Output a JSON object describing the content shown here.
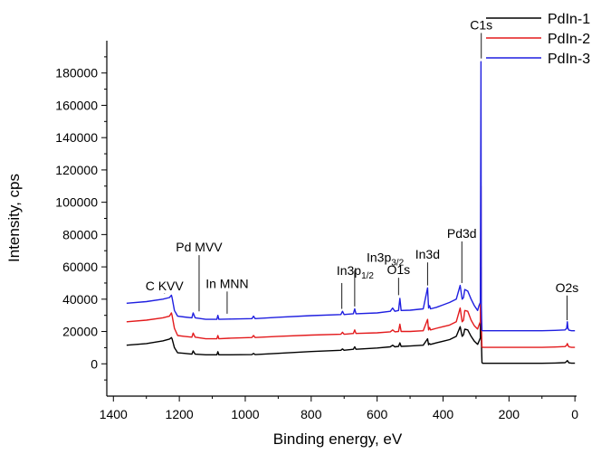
{
  "chart_data": {
    "type": "line",
    "title": "",
    "xlabel": "Binding energy, eV",
    "ylabel": "Intensity, cps",
    "xlim": [
      1420,
      -5
    ],
    "ylim": [
      -20000,
      200000
    ],
    "x_ticks": [
      1400,
      1200,
      1000,
      800,
      600,
      400,
      200,
      0
    ],
    "y_ticks": [
      0,
      20000,
      40000,
      60000,
      80000,
      100000,
      120000,
      140000,
      160000,
      180000
    ],
    "legend_position": "top-right",
    "series": [
      {
        "name": "PdIn-1",
        "color": "#000000",
        "x": [
          1360,
          1300,
          1250,
          1230,
          1224,
          1222,
          1215,
          1205,
          1185,
          1162,
          1158,
          1152,
          1120,
          1086,
          1083,
          1080,
          1050,
          980,
          975,
          970,
          900,
          800,
          710,
          705,
          700,
          672,
          668,
          664,
          600,
          560,
          553,
          546,
          535,
          531,
          527,
          500,
          460,
          447,
          444,
          441,
          438,
          420,
          400,
          380,
          360,
          348,
          342,
          338,
          334,
          325,
          315,
          305,
          295,
          291,
          287,
          285,
          284,
          283,
          282,
          280,
          270,
          250,
          200,
          150,
          100,
          60,
          30,
          25,
          23,
          21,
          18,
          10,
          0
        ],
        "y": [
          11500,
          12500,
          14200,
          15300,
          16200,
          15500,
          10000,
          6800,
          6500,
          6000,
          8000,
          6000,
          5600,
          5600,
          7500,
          5600,
          5600,
          5700,
          6400,
          5700,
          6500,
          7600,
          8400,
          9200,
          8400,
          9000,
          10500,
          9000,
          9800,
          10500,
          11500,
          10500,
          10800,
          13000,
          10800,
          11000,
          11500,
          15500,
          11800,
          12500,
          12000,
          13000,
          14000,
          15000,
          17000,
          23000,
          17000,
          18000,
          21500,
          21000,
          17000,
          14000,
          12000,
          14000,
          16000,
          60000,
          19000,
          9000,
          800,
          300,
          300,
          300,
          300,
          300,
          300,
          500,
          700,
          1500,
          2000,
          1500,
          600,
          400,
          400
        ]
      },
      {
        "name": "PdIn-2",
        "color": "#e31a1c",
        "x": [
          1360,
          1300,
          1250,
          1230,
          1224,
          1222,
          1215,
          1205,
          1185,
          1162,
          1158,
          1152,
          1120,
          1086,
          1083,
          1080,
          1050,
          980,
          975,
          970,
          900,
          800,
          710,
          705,
          700,
          672,
          668,
          664,
          600,
          560,
          553,
          546,
          535,
          531,
          527,
          500,
          460,
          447,
          444,
          441,
          438,
          420,
          400,
          380,
          360,
          348,
          342,
          338,
          334,
          325,
          315,
          305,
          295,
          291,
          287,
          285,
          284,
          283,
          282,
          280,
          270,
          250,
          200,
          150,
          100,
          60,
          30,
          25,
          23,
          21,
          18,
          10,
          0
        ],
        "y": [
          26000,
          27000,
          28500,
          29500,
          31500,
          30000,
          22000,
          17500,
          17000,
          16500,
          19000,
          16500,
          15500,
          15500,
          17500,
          15500,
          15800,
          16300,
          17500,
          16300,
          17000,
          17800,
          18300,
          19500,
          18300,
          18800,
          21000,
          18800,
          19200,
          19800,
          21000,
          19800,
          20000,
          24500,
          20000,
          20000,
          20500,
          27500,
          21000,
          22500,
          21000,
          22000,
          23000,
          24000,
          26000,
          34500,
          26000,
          27000,
          33000,
          32500,
          27000,
          23500,
          21500,
          24000,
          26000,
          110000,
          28000,
          18000,
          10500,
          10200,
          10200,
          10200,
          10200,
          10200,
          10200,
          10400,
          10700,
          11500,
          12500,
          11500,
          10500,
          10200,
          10200
        ]
      },
      {
        "name": "PdIn-3",
        "color": "#1f1fe0",
        "x": [
          1360,
          1300,
          1250,
          1230,
          1224,
          1222,
          1215,
          1205,
          1185,
          1162,
          1158,
          1152,
          1120,
          1086,
          1083,
          1080,
          1050,
          980,
          975,
          970,
          900,
          800,
          710,
          705,
          700,
          672,
          668,
          664,
          600,
          560,
          553,
          546,
          535,
          531,
          527,
          500,
          460,
          447,
          444,
          441,
          438,
          420,
          400,
          380,
          360,
          348,
          342,
          338,
          334,
          325,
          315,
          305,
          295,
          291,
          287,
          285,
          284,
          283,
          282,
          280,
          270,
          250,
          200,
          150,
          100,
          60,
          30,
          25,
          23,
          21,
          18,
          10,
          0
        ],
        "y": [
          37500,
          38500,
          40000,
          41000,
          42500,
          41000,
          33000,
          29500,
          29000,
          28500,
          31500,
          28500,
          27500,
          27500,
          30000,
          27500,
          27700,
          28000,
          29500,
          28000,
          28800,
          29800,
          30500,
          32500,
          30500,
          31000,
          34000,
          31000,
          31500,
          32500,
          34500,
          32500,
          33000,
          40500,
          33000,
          33200,
          34000,
          47000,
          34500,
          36000,
          34000,
          35000,
          36500,
          38000,
          40000,
          48500,
          40000,
          41000,
          46000,
          45000,
          40000,
          36000,
          33000,
          36000,
          38000,
          187000,
          40000,
          28000,
          20700,
          20500,
          20500,
          20500,
          20500,
          20500,
          20500,
          20700,
          21000,
          22000,
          26000,
          22000,
          20800,
          20500,
          20500
        ]
      }
    ],
    "annotations": [
      {
        "text": "C KVV",
        "x": 1245,
        "y": 45500,
        "anchor": "middle",
        "line_to": 43500
      },
      {
        "text": "Pd MVV",
        "x": 1140,
        "y": 69500,
        "anchor": "middle",
        "line_to": 32500
      },
      {
        "text": "In MNN",
        "x": 1055,
        "y": 47000,
        "anchor": "middle",
        "line_to": 31000
      },
      {
        "text": "O1s",
        "x": 535,
        "y": 55500,
        "anchor": "middle",
        "line_to": 42500
      },
      {
        "text": "In3d",
        "x": 447,
        "y": 65000,
        "anchor": "middle",
        "line_to": 48500
      },
      {
        "text": "Pd3d",
        "x": 343,
        "y": 78000,
        "anchor": "middle",
        "line_to": 50000
      },
      {
        "text": "C1s",
        "x": 284,
        "y": 207000,
        "anchor": "middle",
        "line_to": 189000
      },
      {
        "text": "O2s",
        "x": 24,
        "y": 44500,
        "anchor": "middle",
        "line_to": 27000
      }
    ],
    "sub_annotations": [
      {
        "base": "In3p",
        "sub": "1/2",
        "x": 723,
        "y": 55000,
        "line_x": 707,
        "line_from": 50000,
        "line_to": 34000
      },
      {
        "base": "In3p",
        "sub": "3/2",
        "x": 632,
        "y": 63000,
        "line_x": 668,
        "line_from": 58000,
        "line_to": 35500
      }
    ]
  }
}
